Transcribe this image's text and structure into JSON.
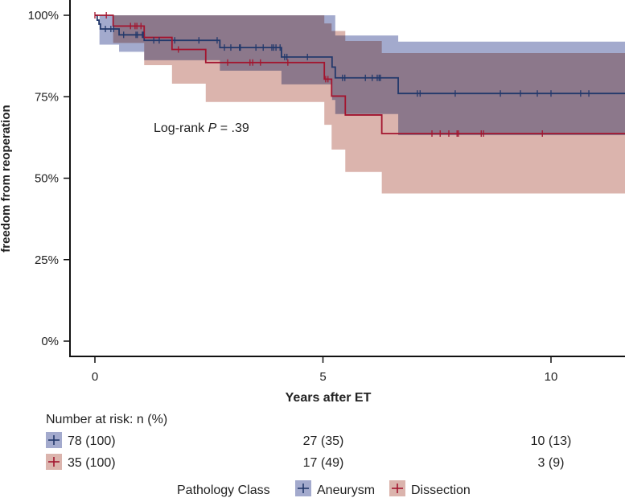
{
  "chart_data": {
    "type": "line",
    "subtype": "kaplan-meier",
    "ylabel": "freedom from reoperation",
    "xlabel": "Years after ET",
    "xlim": [
      -0.55,
      11.6
    ],
    "ylim": [
      0,
      100
    ],
    "x_ticks": [
      0,
      5,
      10
    ],
    "x_tick_labels": [
      "0",
      "5",
      "10"
    ],
    "y_ticks": [
      0,
      25,
      50,
      75,
      100
    ],
    "y_tick_labels": [
      "0%",
      "25%",
      "50%",
      "75%",
      "100%"
    ],
    "annotation": {
      "prefix": "Log-rank ",
      "p": "P",
      "suffix": " = .39"
    },
    "legend": {
      "title": "Pathology Class",
      "placement": "bottom"
    },
    "series": [
      {
        "name": "Aneurysm",
        "line_color": "#22386b",
        "fill_color": "#a3aacd",
        "steps": [
          [
            0,
            100
          ],
          [
            0.05,
            98.5
          ],
          [
            0.09,
            97.3
          ],
          [
            0.12,
            95.8
          ],
          [
            0.53,
            94.0
          ],
          [
            1.08,
            92.3
          ],
          [
            2.74,
            90.1
          ],
          [
            4.09,
            87.2
          ],
          [
            5.2,
            84.1
          ],
          [
            5.27,
            80.8
          ],
          [
            6.65,
            76.0
          ]
        ],
        "upper": [
          [
            0,
            100
          ],
          [
            5.27,
            93.8
          ],
          [
            6.65,
            91.9
          ]
        ],
        "lower": [
          [
            0,
            100
          ],
          [
            0.1,
            91.0
          ],
          [
            0.53,
            88.8
          ],
          [
            1.08,
            86.2
          ],
          [
            2.74,
            83.0
          ],
          [
            4.09,
            78.8
          ],
          [
            5.2,
            74.0
          ],
          [
            5.27,
            69.7
          ],
          [
            6.65,
            63.2
          ]
        ],
        "censored": [
          0.23,
          0.35,
          0.41,
          0.63,
          0.9,
          0.93,
          1.04,
          1.06,
          1.29,
          1.41,
          1.75,
          2.28,
          2.68,
          2.84,
          2.98,
          3.17,
          3.19,
          3.53,
          3.69,
          3.88,
          3.92,
          3.97,
          4.06,
          4.16,
          4.21,
          4.66,
          5.43,
          5.48,
          5.93,
          6.08,
          6.19,
          6.23,
          6.26,
          7.07,
          7.13,
          7.9,
          8.89,
          9.33,
          9.7,
          10.0,
          10.65,
          10.83
        ]
      },
      {
        "name": "Dissection",
        "line_color": "#a3152f",
        "fill_color": "#dbb4ad",
        "steps": [
          [
            0,
            100
          ],
          [
            0.4,
            96.7
          ],
          [
            1.08,
            93.2
          ],
          [
            1.69,
            89.5
          ],
          [
            2.43,
            85.5
          ],
          [
            5.03,
            80.4
          ],
          [
            5.19,
            75.2
          ],
          [
            5.49,
            69.4
          ],
          [
            6.29,
            63.7
          ]
        ],
        "upper": [
          [
            0,
            100
          ],
          [
            5.03,
            97.5
          ],
          [
            5.19,
            95.2
          ],
          [
            5.49,
            92.1
          ],
          [
            6.29,
            88.4
          ]
        ],
        "lower": [
          [
            0,
            100
          ],
          [
            0.4,
            91.5
          ],
          [
            1.08,
            84.7
          ],
          [
            1.69,
            79.0
          ],
          [
            2.43,
            73.4
          ],
          [
            5.03,
            66.4
          ],
          [
            5.19,
            58.8
          ],
          [
            5.49,
            51.9
          ],
          [
            6.29,
            45.3
          ]
        ],
        "censored": [
          0.0,
          0.25,
          0.78,
          0.88,
          0.92,
          1.01,
          1.83,
          2.91,
          3.4,
          3.46,
          3.63,
          4.23,
          5.06,
          5.11,
          7.39,
          7.57,
          7.76,
          7.94,
          7.97,
          8.47,
          8.52,
          9.81
        ]
      }
    ]
  },
  "risk_table": {
    "title": "Number at risk: n (%)",
    "rows": [
      {
        "name": "Aneurysm",
        "values": [
          "78 (100)",
          "27 (35)",
          "10 (13)"
        ]
      },
      {
        "name": "Dissection",
        "values": [
          "35 (100)",
          "17 (49)",
          "3 (9)"
        ]
      }
    ]
  }
}
